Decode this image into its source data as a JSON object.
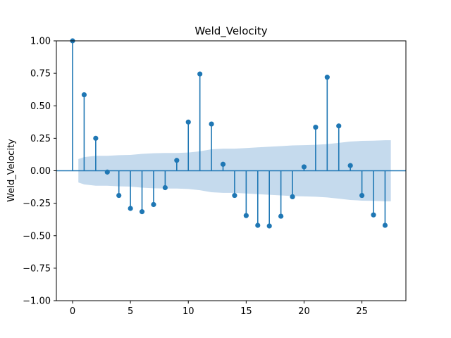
{
  "chart_data": {
    "type": "scatter",
    "title": "Weld_Velocity",
    "xlabel": "",
    "ylabel": "Weld_Velocity",
    "xlim": [
      -1.4,
      28.8
    ],
    "ylim": [
      -1.0,
      1.0
    ],
    "x_ticks": [
      0,
      5,
      10,
      15,
      20,
      25
    ],
    "y_ticks": [
      -1.0,
      -0.75,
      -0.5,
      -0.25,
      0.0,
      0.25,
      0.5,
      0.75,
      1.0
    ],
    "y_tick_labels": [
      "−1.00",
      "−0.75",
      "−0.50",
      "−0.25",
      "0.00",
      "0.25",
      "0.50",
      "0.75",
      "1.00"
    ],
    "x": [
      0,
      1,
      2,
      3,
      4,
      5,
      6,
      7,
      8,
      9,
      10,
      11,
      12,
      13,
      14,
      15,
      16,
      17,
      18,
      19,
      20,
      21,
      22,
      23,
      24,
      25,
      26,
      27
    ],
    "values": [
      1.0,
      0.585,
      0.25,
      -0.01,
      -0.19,
      -0.29,
      -0.315,
      -0.26,
      -0.13,
      0.08,
      0.375,
      0.745,
      0.36,
      0.05,
      -0.19,
      -0.345,
      -0.42,
      -0.425,
      -0.35,
      -0.2,
      0.03,
      0.335,
      0.72,
      0.345,
      0.04,
      -0.19,
      -0.34,
      -0.42
    ],
    "confidence_band": {
      "x": [
        0.5,
        1,
        2,
        3,
        4,
        5,
        6,
        7,
        8,
        9,
        10,
        11,
        12,
        13,
        14,
        15,
        16,
        17,
        18,
        19,
        20,
        21,
        22,
        23,
        24,
        25,
        26,
        27,
        27.5
      ],
      "upper": [
        0.09,
        0.105,
        0.115,
        0.115,
        0.12,
        0.122,
        0.13,
        0.135,
        0.137,
        0.137,
        0.14,
        0.15,
        0.165,
        0.17,
        0.17,
        0.175,
        0.18,
        0.185,
        0.19,
        0.195,
        0.197,
        0.2,
        0.205,
        0.215,
        0.225,
        0.23,
        0.232,
        0.235,
        0.235
      ],
      "color": "#c5daed"
    },
    "marker_color": "#1f77b4",
    "zero_line": true,
    "grid": false
  }
}
